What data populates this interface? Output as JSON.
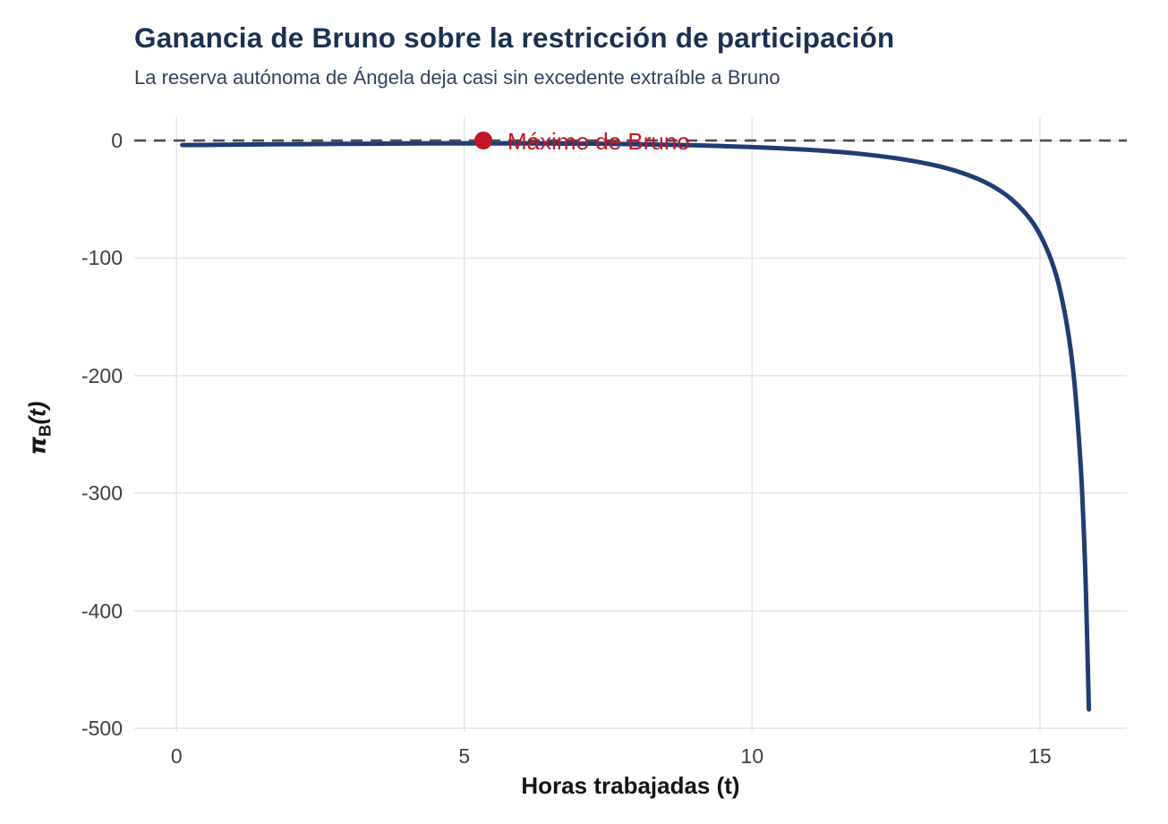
{
  "chart_data": {
    "type": "line",
    "title": "Ganancia de Bruno sobre la restricción de participación",
    "subtitle": "La reserva autónoma de Ángela deja casi sin excedente extraíble a Bruno",
    "xlabel": "Horas trabajadas (t)",
    "ylabel": {
      "pi": "π",
      "sub": "B",
      "rest": "(t)"
    },
    "x_ticks": [
      0,
      5,
      10,
      15
    ],
    "y_ticks": [
      0,
      -100,
      -200,
      -300,
      -400,
      -500
    ],
    "xlim": [
      -0.735,
      16.51
    ],
    "ylim": [
      -503,
      19.8
    ],
    "grid": true,
    "legend": "none",
    "series": [
      {
        "name": "Ganancia de Bruno",
        "x": [
          0.1,
          0.5,
          1,
          1.5,
          2,
          2.5,
          3,
          3.5,
          4,
          4.5,
          5,
          5.33,
          6,
          6.5,
          7,
          7.5,
          8,
          8.5,
          9,
          9.5,
          10,
          10.5,
          11,
          11.5,
          12,
          12.5,
          13,
          13.3,
          13.6,
          13.9,
          14.2,
          14.5,
          14.8,
          15,
          15.2,
          15.35,
          15.5,
          15.6,
          15.7,
          15.75,
          15.8,
          15.85
        ],
        "y": [
          -3.9,
          -3.8,
          -3.5,
          -3.3,
          -3.2,
          -3.0,
          -2.8,
          -2.7,
          -2.6,
          -2.5,
          -2.5,
          -2.5,
          -2.5,
          -2.6,
          -2.7,
          -2.9,
          -3.2,
          -3.6,
          -4.1,
          -4.8,
          -5.6,
          -6.7,
          -8.0,
          -9.7,
          -12.0,
          -15.1,
          -19.3,
          -22.6,
          -26.8,
          -32.2,
          -39.5,
          -49.7,
          -64.9,
          -80.0,
          -102.2,
          -127.3,
          -166.1,
          -206.4,
          -269.8,
          -317.4,
          -384.0,
          -484.0
        ]
      }
    ],
    "reference_line": {
      "y": 0,
      "style": "dashed"
    },
    "annotation_point": {
      "x": 5.33,
      "y": 0,
      "label": "Máximo de Bruno"
    }
  },
  "colors": {
    "background": "#ffffff",
    "title": "#1c3150",
    "subtitle": "#32435a",
    "axis_title": "#141414",
    "axis_text": "#404040",
    "grid": "#e6e6e6",
    "curve": "#1f3d73",
    "zero_line": "#4d4d4d",
    "accent_red": "#c11627"
  }
}
